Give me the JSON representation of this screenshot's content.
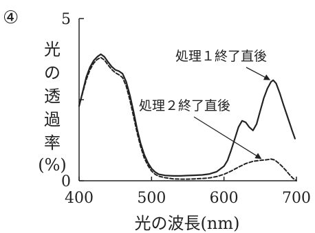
{
  "chart_data": {
    "type": "line",
    "panel_label": "④",
    "xlabel": "光の波長(nm)",
    "ylabel": [
      "光",
      "の",
      "透",
      "過",
      "率",
      "(%)"
    ],
    "xlim": [
      400,
      700
    ],
    "ylim": [
      0,
      5
    ],
    "x_ticks": [
      400,
      500,
      600,
      700
    ],
    "x_tick_labels": [
      "400",
      "500",
      "600",
      "700"
    ],
    "y_ticks": [
      0,
      5
    ],
    "y_tick_labels": [
      "0",
      "5"
    ],
    "y_minor_ticks": [
      2.5
    ],
    "grid": false,
    "series": [
      {
        "name": "処理１終了直後",
        "style": "solid",
        "color": "#222222",
        "points": [
          [
            400,
            2.3
          ],
          [
            405,
            2.75
          ],
          [
            410,
            3.2
          ],
          [
            415,
            3.5
          ],
          [
            420,
            3.7
          ],
          [
            425,
            3.82
          ],
          [
            430,
            3.9
          ],
          [
            435,
            3.82
          ],
          [
            440,
            3.66
          ],
          [
            445,
            3.52
          ],
          [
            450,
            3.42
          ],
          [
            455,
            3.38
          ],
          [
            460,
            3.3
          ],
          [
            465,
            3.05
          ],
          [
            470,
            2.65
          ],
          [
            475,
            2.15
          ],
          [
            480,
            1.6
          ],
          [
            485,
            1.15
          ],
          [
            490,
            0.8
          ],
          [
            495,
            0.55
          ],
          [
            500,
            0.38
          ],
          [
            505,
            0.27
          ],
          [
            510,
            0.2
          ],
          [
            520,
            0.16
          ],
          [
            530,
            0.15
          ],
          [
            540,
            0.15
          ],
          [
            550,
            0.16
          ],
          [
            560,
            0.17
          ],
          [
            570,
            0.18
          ],
          [
            580,
            0.21
          ],
          [
            590,
            0.28
          ],
          [
            600,
            0.45
          ],
          [
            605,
            0.63
          ],
          [
            610,
            0.95
          ],
          [
            615,
            1.3
          ],
          [
            620,
            1.65
          ],
          [
            625,
            1.85
          ],
          [
            630,
            1.8
          ],
          [
            635,
            1.65
          ],
          [
            640,
            1.55
          ],
          [
            645,
            1.75
          ],
          [
            650,
            2.15
          ],
          [
            655,
            2.55
          ],
          [
            660,
            2.85
          ],
          [
            665,
            3.05
          ],
          [
            668,
            3.1
          ],
          [
            672,
            3.0
          ],
          [
            677,
            2.7
          ],
          [
            682,
            2.35
          ],
          [
            688,
            1.95
          ],
          [
            694,
            1.55
          ],
          [
            698,
            1.3
          ]
        ]
      },
      {
        "name": "処理２終了直後",
        "style": "dashed",
        "color": "#222222",
        "points": [
          [
            400,
            2.3
          ],
          [
            405,
            2.72
          ],
          [
            410,
            3.12
          ],
          [
            415,
            3.42
          ],
          [
            420,
            3.62
          ],
          [
            425,
            3.74
          ],
          [
            430,
            3.8
          ],
          [
            435,
            3.72
          ],
          [
            440,
            3.57
          ],
          [
            445,
            3.43
          ],
          [
            450,
            3.33
          ],
          [
            455,
            3.27
          ],
          [
            460,
            3.18
          ],
          [
            465,
            2.92
          ],
          [
            470,
            2.5
          ],
          [
            475,
            2.0
          ],
          [
            480,
            1.48
          ],
          [
            485,
            1.05
          ],
          [
            490,
            0.7
          ],
          [
            495,
            0.47
          ],
          [
            500,
            0.3
          ],
          [
            505,
            0.2
          ],
          [
            510,
            0.14
          ],
          [
            520,
            0.09
          ],
          [
            530,
            0.06
          ],
          [
            540,
            0.05
          ],
          [
            550,
            0.05
          ],
          [
            560,
            0.06
          ],
          [
            570,
            0.07
          ],
          [
            580,
            0.09
          ],
          [
            590,
            0.13
          ],
          [
            600,
            0.2
          ],
          [
            610,
            0.3
          ],
          [
            620,
            0.42
          ],
          [
            630,
            0.53
          ],
          [
            640,
            0.6
          ],
          [
            650,
            0.63
          ],
          [
            660,
            0.65
          ],
          [
            665,
            0.67
          ],
          [
            670,
            0.64
          ],
          [
            675,
            0.55
          ],
          [
            680,
            0.45
          ],
          [
            685,
            0.33
          ],
          [
            690,
            0.2
          ],
          [
            695,
            0.08
          ],
          [
            700,
            0.0
          ]
        ]
      }
    ],
    "annotations": [
      {
        "text": "処理１終了直後",
        "series": 0,
        "arrow_to": [
          667,
          3.05
        ]
      },
      {
        "text": "処理２終了直後",
        "series": 1,
        "arrow_to": [
          655,
          0.62
        ]
      }
    ]
  }
}
